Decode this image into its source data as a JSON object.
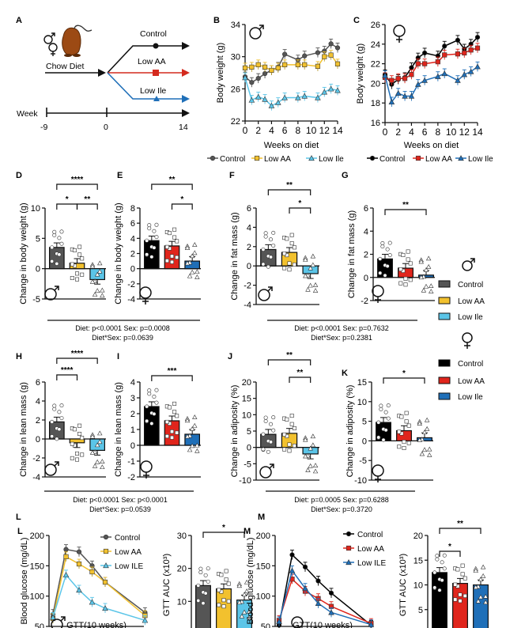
{
  "colors": {
    "male_control": "#555555",
    "male_lowaa": "#f2c12e",
    "male_lowile": "#5bc5e8",
    "female_control": "#000000",
    "female_lowaa": "#e0251c",
    "female_lowile": "#1f6fb8",
    "axis": "#111111"
  },
  "panel_a": {
    "label": "A",
    "start_label": "Chow Diet",
    "arms": [
      "Control",
      "Low AA",
      "Low Ile"
    ],
    "timeline_label": "Week",
    "ticks": [
      "-9",
      "0",
      "14"
    ]
  },
  "stats": {
    "de_line1": "Diet: p<0.0001 Sex: p=0.0008",
    "de_line2": "Diet*Sex: p=0.0639",
    "fg_line1": "Diet: p<0.0001 Sex: p=0.7632",
    "fg_line2": "Diet*Sex: p=0.2381",
    "hi_line1": "Diet: p<0.0001 Sex: p<0.0001",
    "hi_line2": "Diet*Sex: p=0.0539",
    "jk_line1": "Diet: p=0.0005 Sex: p=0.6288",
    "jk_line2": "Diet*Sex: p=0.3720"
  },
  "legend_side": {
    "male_items": [
      "Control",
      "Low AA",
      "Low Ile"
    ],
    "female_items": [
      "Control",
      "Low AA",
      "Low Ile"
    ]
  },
  "chart_data": [
    {
      "id": "B",
      "type": "line",
      "sex": "male",
      "xlabel": "Weeks on diet",
      "ylabel": "Body weight (g)",
      "ylim": [
        22,
        34
      ],
      "yticks": [
        22,
        26,
        30,
        34
      ],
      "xlim": [
        0,
        14
      ],
      "xticks": [
        0,
        2,
        4,
        6,
        8,
        10,
        12,
        14
      ],
      "x": [
        0,
        1,
        2,
        3,
        4,
        5,
        6,
        8,
        9,
        11,
        12,
        13,
        14
      ],
      "series": [
        {
          "name": "Control",
          "values": [
            27.5,
            26.8,
            27.3,
            27.9,
            28.3,
            28.7,
            30.3,
            29.6,
            30.1,
            30.5,
            30.7,
            31.6,
            31.1
          ]
        },
        {
          "name": "Low AA",
          "values": [
            28.6,
            28.7,
            29.0,
            28.7,
            28.3,
            28.6,
            29.0,
            29.0,
            29.0,
            28.8,
            30.0,
            30.2,
            29.1
          ]
        },
        {
          "name": "Low Ile",
          "values": [
            27.4,
            24.6,
            25.0,
            24.7,
            23.9,
            24.3,
            24.9,
            24.9,
            25.1,
            24.9,
            25.6,
            26.0,
            25.8
          ]
        }
      ],
      "legend": [
        "Control",
        "Low AA",
        "Low Ile"
      ]
    },
    {
      "id": "C",
      "type": "line",
      "sex": "female",
      "xlabel": "Weeks on diet",
      "ylabel": "Body weight (g)",
      "ylim": [
        16,
        26
      ],
      "yticks": [
        16,
        18,
        20,
        22,
        24,
        26
      ],
      "xlim": [
        0,
        14
      ],
      "xticks": [
        0,
        2,
        4,
        6,
        8,
        10,
        12,
        14
      ],
      "x": [
        0,
        1,
        2,
        3,
        4,
        5,
        6,
        8,
        9,
        11,
        12,
        13,
        14
      ],
      "series": [
        {
          "name": "Control",
          "values": [
            20.9,
            19.9,
            20.4,
            20.6,
            21.6,
            22.6,
            23.1,
            22.8,
            23.8,
            24.4,
            23.5,
            24.0,
            24.7
          ]
        },
        {
          "name": "Low AA",
          "values": [
            20.6,
            20.3,
            20.5,
            20.5,
            20.9,
            22.0,
            22.0,
            22.2,
            22.9,
            23.0,
            23.1,
            23.4,
            23.6
          ]
        },
        {
          "name": "Low Ile",
          "values": [
            20.8,
            18.1,
            19.0,
            18.7,
            18.7,
            19.9,
            20.3,
            20.7,
            21.0,
            20.3,
            20.9,
            21.2,
            21.7
          ]
        }
      ],
      "legend": [
        "Control",
        "Low AA",
        "Low Ile"
      ]
    },
    {
      "id": "D",
      "type": "bar",
      "sex": "male",
      "ylabel": "Change in body weight (g)",
      "ylim": [
        -5,
        10
      ],
      "yticks": [
        -5,
        0,
        5,
        10
      ],
      "categories": [
        "Control",
        "Low AA",
        "Low Ile"
      ],
      "values": [
        3.5,
        0.9,
        -1.8
      ],
      "sig": [
        "****",
        "*",
        "**"
      ]
    },
    {
      "id": "E",
      "type": "bar",
      "sex": "female",
      "ylabel": "Change in body weight (g)",
      "ylim": [
        -4,
        8
      ],
      "yticks": [
        -4,
        -2,
        0,
        2,
        4,
        6,
        8
      ],
      "categories": [
        "Control",
        "Low AA",
        "Low Ile"
      ],
      "values": [
        3.7,
        3.0,
        1.0
      ],
      "sig": [
        "**",
        "*"
      ]
    },
    {
      "id": "F",
      "type": "bar",
      "sex": "male",
      "ylabel": "Change in fat mass (g)",
      "ylim": [
        -4,
        6
      ],
      "yticks": [
        -4,
        -2,
        0,
        2,
        4,
        6
      ],
      "categories": [
        "Control",
        "Low AA",
        "Low Ile"
      ],
      "values": [
        1.7,
        1.4,
        -0.8
      ],
      "sig": [
        "**",
        "*"
      ]
    },
    {
      "id": "G",
      "type": "bar",
      "sex": "female",
      "ylabel": "Change in fat mass  (g)",
      "ylim": [
        -2,
        6
      ],
      "yticks": [
        -2,
        0,
        2,
        4,
        6
      ],
      "categories": [
        "Control",
        "Low AA",
        "Low Ile"
      ],
      "values": [
        1.6,
        0.8,
        0.2
      ],
      "sig": [
        "**"
      ]
    },
    {
      "id": "H",
      "type": "bar",
      "sex": "male",
      "ylabel": "Change in lean mass (g)",
      "ylim": [
        -4,
        6
      ],
      "yticks": [
        -4,
        -2,
        0,
        2,
        4,
        6
      ],
      "categories": [
        "Control",
        "Low AA",
        "Low Ile"
      ],
      "values": [
        1.8,
        -0.4,
        -1.2
      ],
      "sig": [
        "****",
        "****"
      ]
    },
    {
      "id": "I",
      "type": "bar",
      "sex": "female",
      "ylabel": "Change in lean mass (g)",
      "ylim": [
        -2,
        4
      ],
      "yticks": [
        -2,
        -1,
        0,
        1,
        2,
        3,
        4
      ],
      "categories": [
        "Control",
        "Low AA",
        "Low Ile"
      ],
      "values": [
        2.45,
        1.55,
        0.7
      ],
      "sig": [
        "***"
      ]
    },
    {
      "id": "J",
      "type": "bar",
      "sex": "male",
      "ylabel": "Change in adiposity (%)",
      "ylim": [
        -10,
        20
      ],
      "yticks": [
        -10,
        -5,
        0,
        5,
        10,
        15,
        20
      ],
      "categories": [
        "Control",
        "Low AA",
        "Low Ile"
      ],
      "values": [
        4.0,
        4.3,
        -2.0
      ],
      "sig": [
        "**",
        "**"
      ]
    },
    {
      "id": "K",
      "type": "bar",
      "sex": "female",
      "ylabel": "Change in adiposity (%)",
      "ylim": [
        -10,
        15
      ],
      "yticks": [
        -10,
        -5,
        0,
        5,
        10,
        15
      ],
      "categories": [
        "Control",
        "Low AA",
        "Low Ile"
      ],
      "values": [
        4.7,
        2.6,
        0.8
      ],
      "sig": [
        "*"
      ]
    },
    {
      "id": "L",
      "type": "line",
      "sex": "male",
      "xlabel": "GTT(10 weeks)",
      "ylabel": "Blood glucose (mg/dL)",
      "ylim": [
        50,
        200
      ],
      "yticks": [
        50,
        100,
        150,
        200
      ],
      "x": [
        0,
        15,
        30,
        45,
        60,
        120
      ],
      "series": [
        {
          "name": "Control",
          "values": [
            70,
            177,
            173,
            150,
            123,
            73
          ]
        },
        {
          "name": "Low AA",
          "values": [
            63,
            165,
            153,
            140,
            123,
            68
          ]
        },
        {
          "name": "Low ILE",
          "values": [
            65,
            135,
            110,
            90,
            80,
            60
          ]
        }
      ],
      "legend": [
        "Control",
        "Low AA",
        "Low ILE"
      ]
    },
    {
      "id": "L-AUC",
      "type": "bar",
      "sex": "male",
      "ylabel": "GTT AUC (x10³)",
      "ylim": [
        0,
        30
      ],
      "yticks": [
        10,
        20,
        30
      ],
      "categories": [
        "Control",
        "Low AA",
        "Low Ile"
      ],
      "values": [
        14.8,
        13.8,
        10.4
      ],
      "sig": [
        "*"
      ]
    },
    {
      "id": "M",
      "type": "line",
      "sex": "female",
      "xlabel": "GTT(10 weeks)",
      "ylabel": "Blood glucose (mg/dL)",
      "ylim": [
        50,
        200
      ],
      "yticks": [
        50,
        100,
        150,
        200
      ],
      "x": [
        0,
        15,
        30,
        45,
        60,
        120
      ],
      "series": [
        {
          "name": "Control",
          "values": [
            52,
            168,
            148,
            125,
            105,
            52
          ]
        },
        {
          "name": "Low AA",
          "values": [
            60,
            128,
            108,
            96,
            83,
            55
          ]
        },
        {
          "name": "Low ILE",
          "values": [
            58,
            142,
            113,
            88,
            73,
            53
          ]
        }
      ],
      "legend": [
        "Control",
        "Low AA",
        "Low ILE"
      ]
    },
    {
      "id": "M-AUC",
      "type": "bar",
      "sex": "female",
      "ylabel": "GTT AUC (x10³)",
      "ylim": [
        0,
        20
      ],
      "yticks": [
        5,
        10,
        15,
        20
      ],
      "categories": [
        "Control",
        "Low AA",
        "Low Ile"
      ],
      "values": [
        12.5,
        10.3,
        10.0
      ],
      "sig": [
        "**",
        "*"
      ]
    }
  ]
}
